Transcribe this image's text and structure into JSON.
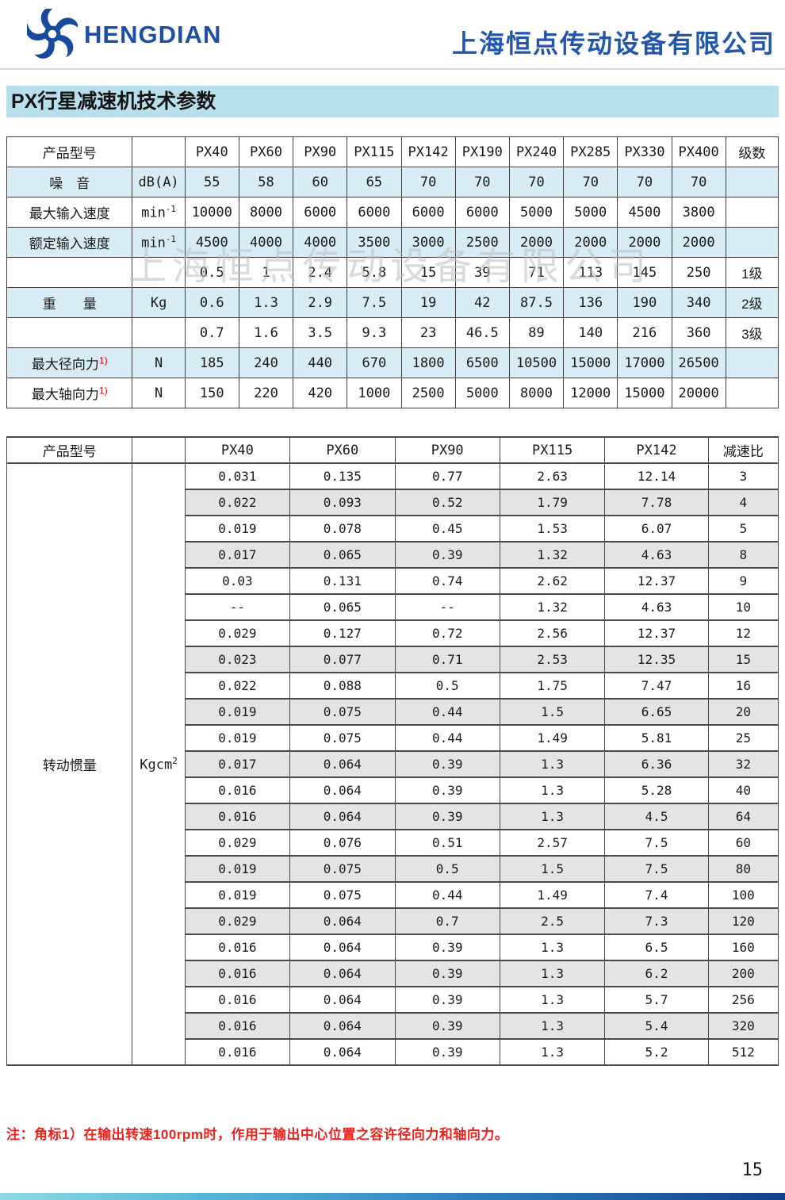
{
  "header": {
    "brand": "HENGDIAN",
    "company": "上海恒点传动设备有限公司",
    "logo_color": "#174a9c"
  },
  "title": "PX行星减速机技术参数",
  "watermark": "上海恒点传动设备有限公司",
  "table1": {
    "header": [
      "产品型号",
      "",
      "PX40",
      "PX60",
      "PX90",
      "PX115",
      "PX142",
      "PX190",
      "PX240",
      "PX285",
      "PX330",
      "PX400",
      "级数"
    ],
    "rows": [
      {
        "label": "噪　音",
        "label_sup": "",
        "unit": "dB(A)",
        "unit_sup": "",
        "values": [
          "55",
          "58",
          "60",
          "65",
          "70",
          "70",
          "70",
          "70",
          "70",
          "70"
        ],
        "stage": "",
        "shade": true
      },
      {
        "label": "最大输入速度",
        "label_sup": "",
        "unit": "min",
        "unit_sup": "-1",
        "values": [
          "10000",
          "8000",
          "6000",
          "6000",
          "6000",
          "6000",
          "5000",
          "5000",
          "4500",
          "3800"
        ],
        "stage": "",
        "shade": false
      },
      {
        "label": "额定输入速度",
        "label_sup": "",
        "unit": "min",
        "unit_sup": "-1",
        "values": [
          "4500",
          "4000",
          "4000",
          "3500",
          "3000",
          "2500",
          "2000",
          "2000",
          "2000",
          "2000"
        ],
        "stage": "",
        "shade": true
      },
      {
        "label": "",
        "label_sup": "",
        "unit": "",
        "unit_sup": "",
        "values": [
          "0.5",
          "1",
          "2.4",
          "5.8",
          "15",
          "39",
          "71",
          "113",
          "145",
          "250"
        ],
        "stage": "1级",
        "shade": false
      },
      {
        "label": "重　　量",
        "label_sup": "",
        "unit": "Kg",
        "unit_sup": "",
        "values": [
          "0.6",
          "1.3",
          "2.9",
          "7.5",
          "19",
          "42",
          "87.5",
          "136",
          "190",
          "340"
        ],
        "stage": "2级",
        "shade": true
      },
      {
        "label": "",
        "label_sup": "",
        "unit": "",
        "unit_sup": "",
        "values": [
          "0.7",
          "1.6",
          "3.5",
          "9.3",
          "23",
          "46.5",
          "89",
          "140",
          "216",
          "360"
        ],
        "stage": "3级",
        "shade": false
      },
      {
        "label": "最大径向力",
        "label_sup": "1)",
        "unit": "N",
        "unit_sup": "",
        "values": [
          "185",
          "240",
          "440",
          "670",
          "1800",
          "6500",
          "10500",
          "15000",
          "17000",
          "26500"
        ],
        "stage": "",
        "shade": true
      },
      {
        "label": "最大轴向力",
        "label_sup": "1)",
        "unit": "N",
        "unit_sup": "",
        "values": [
          "150",
          "220",
          "420",
          "1000",
          "2500",
          "5000",
          "8000",
          "12000",
          "15000",
          "20000"
        ],
        "stage": "",
        "shade": false
      }
    ]
  },
  "table2": {
    "header": [
      "产品型号",
      "",
      "PX40",
      "PX60",
      "PX90",
      "PX115",
      "PX142",
      "减速比"
    ],
    "row_label": "转动惯量",
    "row_unit": "Kgcm",
    "row_unit_sup": "2",
    "rows": [
      {
        "values": [
          "0.031",
          "0.135",
          "0.77",
          "2.63",
          "12.14"
        ],
        "ratio": "3",
        "shade": false
      },
      {
        "values": [
          "0.022",
          "0.093",
          "0.52",
          "1.79",
          "7.78"
        ],
        "ratio": "4",
        "shade": true
      },
      {
        "values": [
          "0.019",
          "0.078",
          "0.45",
          "1.53",
          "6.07"
        ],
        "ratio": "5",
        "shade": false
      },
      {
        "values": [
          "0.017",
          "0.065",
          "0.39",
          "1.32",
          "4.63"
        ],
        "ratio": "8",
        "shade": true
      },
      {
        "values": [
          "0.03",
          "0.131",
          "0.74",
          "2.62",
          "12.37"
        ],
        "ratio": "9",
        "shade": false
      },
      {
        "values": [
          "--",
          "0.065",
          "--",
          "1.32",
          "4.63"
        ],
        "ratio": "10",
        "shade": false
      },
      {
        "values": [
          "0.029",
          "0.127",
          "0.72",
          "2.56",
          "12.37"
        ],
        "ratio": "12",
        "shade": false
      },
      {
        "values": [
          "0.023",
          "0.077",
          "0.71",
          "2.53",
          "12.35"
        ],
        "ratio": "15",
        "shade": true
      },
      {
        "values": [
          "0.022",
          "0.088",
          "0.5",
          "1.75",
          "7.47"
        ],
        "ratio": "16",
        "shade": false
      },
      {
        "values": [
          "0.019",
          "0.075",
          "0.44",
          "1.5",
          "6.65"
        ],
        "ratio": "20",
        "shade": true
      },
      {
        "values": [
          "0.019",
          "0.075",
          "0.44",
          "1.49",
          "5.81"
        ],
        "ratio": "25",
        "shade": false
      },
      {
        "values": [
          "0.017",
          "0.064",
          "0.39",
          "1.3",
          "6.36"
        ],
        "ratio": "32",
        "shade": true
      },
      {
        "values": [
          "0.016",
          "0.064",
          "0.39",
          "1.3",
          "5.28"
        ],
        "ratio": "40",
        "shade": false
      },
      {
        "values": [
          "0.016",
          "0.064",
          "0.39",
          "1.3",
          "4.5"
        ],
        "ratio": "64",
        "shade": true
      },
      {
        "values": [
          "0.029",
          "0.076",
          "0.51",
          "2.57",
          "7.5"
        ],
        "ratio": "60",
        "shade": false
      },
      {
        "values": [
          "0.019",
          "0.075",
          "0.5",
          "1.5",
          "7.5"
        ],
        "ratio": "80",
        "shade": true
      },
      {
        "values": [
          "0.019",
          "0.075",
          "0.44",
          "1.49",
          "7.4"
        ],
        "ratio": "100",
        "shade": false
      },
      {
        "values": [
          "0.029",
          "0.064",
          "0.7",
          "2.5",
          "7.3"
        ],
        "ratio": "120",
        "shade": true
      },
      {
        "values": [
          "0.016",
          "0.064",
          "0.39",
          "1.3",
          "6.5"
        ],
        "ratio": "160",
        "shade": false
      },
      {
        "values": [
          "0.016",
          "0.064",
          "0.39",
          "1.3",
          "6.2"
        ],
        "ratio": "200",
        "shade": true
      },
      {
        "values": [
          "0.016",
          "0.064",
          "0.39",
          "1.3",
          "5.7"
        ],
        "ratio": "256",
        "shade": false
      },
      {
        "values": [
          "0.016",
          "0.064",
          "0.39",
          "1.3",
          "5.4"
        ],
        "ratio": "320",
        "shade": true
      },
      {
        "values": [
          "0.016",
          "0.064",
          "0.39",
          "1.3",
          "5.2"
        ],
        "ratio": "512",
        "shade": false
      }
    ]
  },
  "note": "注：角标1）在输出转速100rpm时，作用于输出中心位置之容许径向力和轴向力。",
  "page_number": "15",
  "colors": {
    "title_bar": "#b7e0ec",
    "row_shade_blue": "#d8ecf5",
    "row_shade_gray": "#e4e4e4",
    "brand_blue": "#1d4fa3",
    "note_red": "#e8221c"
  }
}
